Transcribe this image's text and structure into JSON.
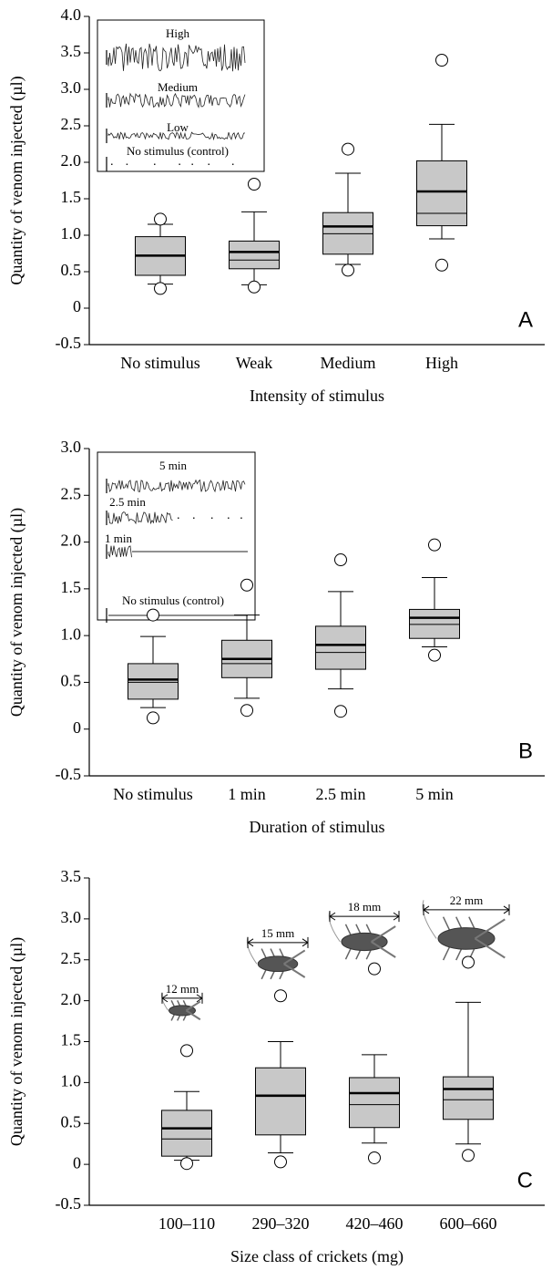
{
  "chart_data": [
    {
      "type": "box",
      "panel": "A",
      "ylabel": "Quantity of venom injected (µl)",
      "xlabel": "Intensity of stimulus",
      "categories": [
        "No stimulus",
        "Weak",
        "Medium",
        "High"
      ],
      "color": "#c8c8c8",
      "ylim": [
        -0.5,
        4.0
      ],
      "yticks": [
        -0.5,
        0,
        0.5,
        {
          "value": 1,
          "label": "1.0"
        },
        1.5,
        {
          "value": 2,
          "label": "2.0"
        },
        2.5,
        {
          "value": 3,
          "label": "3.0"
        },
        3.5,
        {
          "value": 4,
          "label": "4.0"
        }
      ],
      "boxes": [
        {
          "whisker_low": 0.33,
          "q1": 0.45,
          "median": 0.72,
          "mean": 0.72,
          "q3": 0.98,
          "whisker_high": 1.15,
          "outliers": [
            1.22,
            0.27
          ]
        },
        {
          "whisker_low": 0.32,
          "q1": 0.54,
          "median": 0.66,
          "mean": 0.77,
          "q3": 0.92,
          "whisker_high": 1.32,
          "outliers": [
            1.7,
            0.29
          ]
        },
        {
          "whisker_low": 0.6,
          "q1": 0.74,
          "median": 1.02,
          "mean": 1.12,
          "q3": 1.31,
          "whisker_high": 1.85,
          "outliers": [
            2.18,
            0.52
          ]
        },
        {
          "whisker_low": 0.95,
          "q1": 1.13,
          "median": 1.3,
          "mean": 1.6,
          "q3": 2.02,
          "whisker_high": 2.52,
          "outliers": [
            3.4,
            0.59
          ]
        }
      ],
      "inset_labels": [
        "High",
        "Medium",
        "Low",
        "No stimulus (control)"
      ]
    },
    {
      "type": "box",
      "panel": "B",
      "ylabel": "Quantity of venom injected (µl)",
      "xlabel": "Duration of stimulus",
      "categories": [
        "No stimulus",
        "1 min",
        "2.5 min",
        "5 min"
      ],
      "color": "#c8c8c8",
      "ylim": [
        -0.5,
        3.0
      ],
      "yticks": [
        -0.5,
        0,
        0.5,
        {
          "value": 1,
          "label": "1.0"
        },
        1.5,
        {
          "value": 2,
          "label": "2.0"
        },
        2.5,
        {
          "value": 3,
          "label": "3.0"
        }
      ],
      "boxes": [
        {
          "whisker_low": 0.23,
          "q1": 0.32,
          "median": 0.5,
          "mean": 0.53,
          "q3": 0.7,
          "whisker_high": 0.99,
          "outliers": [
            1.22,
            0.12
          ]
        },
        {
          "whisker_low": 0.33,
          "q1": 0.55,
          "median": 0.7,
          "mean": 0.75,
          "q3": 0.95,
          "whisker_high": 1.22,
          "outliers": [
            1.54,
            0.2
          ]
        },
        {
          "whisker_low": 0.43,
          "q1": 0.64,
          "median": 0.82,
          "mean": 0.9,
          "q3": 1.1,
          "whisker_high": 1.47,
          "outliers": [
            1.81,
            0.19
          ]
        },
        {
          "whisker_low": 0.88,
          "q1": 0.97,
          "median": 1.12,
          "mean": 1.19,
          "q3": 1.28,
          "whisker_high": 1.62,
          "outliers": [
            1.97,
            0.79
          ]
        }
      ],
      "inset_labels": [
        "5 min",
        "2.5 min",
        "1 min",
        "No stimulus (control)"
      ]
    },
    {
      "type": "box",
      "panel": "C",
      "ylabel": "Quantity of venom injected (µl)",
      "xlabel": "Size class of crickets (mg)",
      "categories": [
        "100–110",
        "290–320",
        "420–460",
        "600–660"
      ],
      "color": "#c8c8c8",
      "ylim": [
        -0.5,
        3.5
      ],
      "yticks": [
        -0.5,
        0,
        0.5,
        {
          "value": 1,
          "label": "1.0"
        },
        1.5,
        {
          "value": 2,
          "label": "2.0"
        },
        2.5,
        {
          "value": 3,
          "label": "3.0"
        },
        3.5
      ],
      "boxes": [
        {
          "whisker_low": 0.05,
          "q1": 0.1,
          "median": 0.31,
          "mean": 0.44,
          "q3": 0.66,
          "whisker_high": 0.89,
          "outliers": [
            1.39,
            0.01
          ]
        },
        {
          "whisker_low": 0.14,
          "q1": 0.36,
          "median": 0.83,
          "mean": 0.84,
          "q3": 1.18,
          "whisker_high": 1.5,
          "outliers": [
            2.06,
            0.03
          ]
        },
        {
          "whisker_low": 0.26,
          "q1": 0.45,
          "median": 0.73,
          "mean": 0.87,
          "q3": 1.06,
          "whisker_high": 1.34,
          "outliers": [
            2.39,
            0.08
          ]
        },
        {
          "whisker_low": 0.25,
          "q1": 0.55,
          "median": 0.79,
          "mean": 0.92,
          "q3": 1.07,
          "whisker_high": 1.98,
          "outliers": [
            2.47,
            0.11
          ]
        }
      ],
      "size_labels": [
        "12 mm",
        "15 mm",
        "18 mm",
        "22 mm"
      ]
    }
  ]
}
